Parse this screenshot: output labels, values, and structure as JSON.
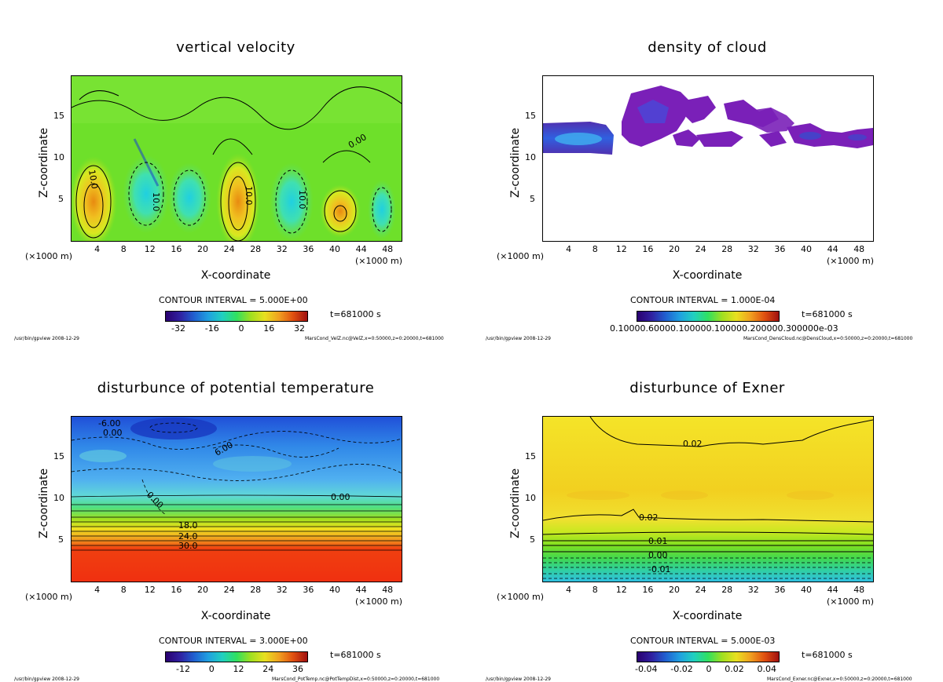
{
  "chart_data": [
    {
      "type": "heatmap",
      "title": "vertical velocity",
      "xlabel": "X-coordinate",
      "ylabel": "Z-coordinate",
      "x_unit": "(×1000 m)",
      "x_ticks": [
        "4",
        "8",
        "12",
        "16",
        "20",
        "24",
        "28",
        "32",
        "36",
        "40",
        "44",
        "48"
      ],
      "y_ticks": [
        "5",
        "10",
        "15"
      ],
      "xlim": [
        0,
        50
      ],
      "ylim": [
        0,
        20
      ],
      "contour_interval": "CONTOUR INTERVAL = 5.000E+00",
      "colorbar_ticks": [
        "-32",
        "-16",
        "0",
        "16",
        "32"
      ],
      "time": "t=681000 s",
      "contour_labels": [
        "10.0",
        "10.0",
        "10.0",
        "10.0",
        "0.00"
      ],
      "footer_left": "/usr/bin/gpview  2008-12-29",
      "footer_right": "MarsCond_VelZ.nc@VelZ,x=0:50000,z=0:20000,t=681000"
    },
    {
      "type": "heatmap",
      "title": "density of cloud",
      "xlabel": "X-coordinate",
      "ylabel": "Z-coordinate",
      "x_unit": "(×1000 m)",
      "x_ticks": [
        "4",
        "8",
        "12",
        "16",
        "20",
        "24",
        "28",
        "32",
        "36",
        "40",
        "44",
        "48"
      ],
      "y_ticks": [
        "5",
        "10",
        "15"
      ],
      "xlim": [
        0,
        50
      ],
      "ylim": [
        0,
        20
      ],
      "contour_interval": "CONTOUR INTERVAL = 1.000E-04",
      "colorbar_ticks": [
        "0.10000.60000.100000.100000.200000.300000e-03"
      ],
      "time": "t=681000 s",
      "footer_left": "/usr/bin/gpview  2008-12-29",
      "footer_right": "MarsCond_DensCloud.nc@DensCloud,x=0:50000,z=0:20000,t=681000"
    },
    {
      "type": "heatmap",
      "title": "disturbunce of potential temperature",
      "xlabel": "X-coordinate",
      "ylabel": "Z-coordinate",
      "x_unit": "(×1000 m)",
      "x_ticks": [
        "4",
        "8",
        "12",
        "16",
        "20",
        "24",
        "28",
        "32",
        "36",
        "40",
        "44",
        "48"
      ],
      "y_ticks": [
        "5",
        "10",
        "15"
      ],
      "xlim": [
        0,
        50
      ],
      "ylim": [
        0,
        20
      ],
      "contour_interval": "CONTOUR INTERVAL = 3.000E+00",
      "colorbar_ticks": [
        "-12",
        "0",
        "12",
        "24",
        "36"
      ],
      "time": "t=681000 s",
      "contour_labels": [
        "-6.00",
        "0.00",
        "0.00",
        "6.00",
        "0.00",
        "18.0",
        "24.0",
        "30.0"
      ],
      "footer_left": "/usr/bin/gpview  2008-12-29",
      "footer_right": "MarsCond_PotTemp.nc@PotTempDist,x=0:50000,z=0:20000,t=681000"
    },
    {
      "type": "heatmap",
      "title": "disturbunce of Exner",
      "xlabel": "X-coordinate",
      "ylabel": "Z-coordinate",
      "x_unit": "(×1000 m)",
      "x_ticks": [
        "4",
        "8",
        "12",
        "16",
        "20",
        "24",
        "28",
        "32",
        "36",
        "40",
        "44",
        "48"
      ],
      "y_ticks": [
        "5",
        "10",
        "15"
      ],
      "xlim": [
        0,
        50
      ],
      "ylim": [
        0,
        20
      ],
      "contour_interval": "CONTOUR INTERVAL = 5.000E-03",
      "colorbar_ticks": [
        "-0.04",
        "-0.02",
        "0",
        "0.02",
        "0.04"
      ],
      "time": "t=681000 s",
      "contour_labels": [
        "0.02",
        "0.02",
        "0.01",
        "0.00",
        "-0.01"
      ],
      "footer_left": "/usr/bin/gpview  2008-12-29",
      "footer_right": "MarsCond_Exner.nc@Exner,x=0:50000,z=0:20000,t=681000"
    }
  ]
}
